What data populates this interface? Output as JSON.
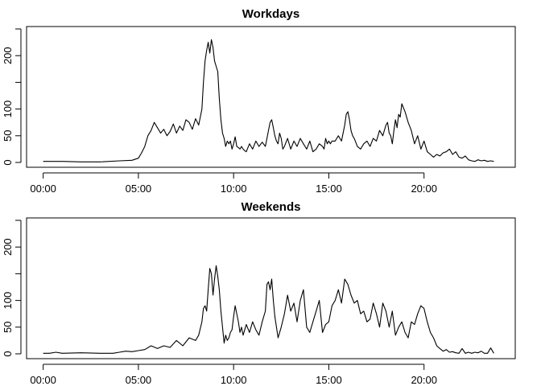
{
  "chart_data": [
    {
      "type": "line",
      "title": "Workdays",
      "xlabel": "",
      "ylabel": "",
      "xlim": [
        0,
        1435
      ],
      "ylim": [
        0,
        250
      ],
      "x_ticks": [
        0,
        300,
        600,
        900,
        1200
      ],
      "x_tick_labels": [
        "00:00",
        "05:00",
        "10:00",
        "15:00",
        "20:00"
      ],
      "y_ticks": [
        0,
        50,
        100,
        150,
        200,
        250
      ],
      "y_tick_labels": [
        "0",
        "50",
        "100",
        "",
        "200",
        ""
      ],
      "grid": false,
      "series": [
        {
          "x": [
            0,
            60,
            120,
            180,
            240,
            280,
            300,
            310,
            320,
            330,
            340,
            350,
            360,
            370,
            380,
            390,
            400,
            410,
            420,
            430,
            440,
            450,
            460,
            470,
            480,
            490,
            500,
            505,
            510,
            515,
            520,
            525,
            530,
            535,
            540,
            545,
            550,
            555,
            560,
            565,
            570,
            575,
            580,
            585,
            590,
            595,
            600,
            605,
            610,
            615,
            620,
            625,
            630,
            635,
            640,
            650,
            660,
            670,
            680,
            690,
            700,
            705,
            710,
            715,
            720,
            725,
            730,
            735,
            740,
            745,
            750,
            755,
            760,
            770,
            780,
            790,
            800,
            810,
            820,
            830,
            840,
            850,
            860,
            870,
            880,
            885,
            890,
            895,
            900,
            905,
            910,
            920,
            930,
            940,
            950,
            955,
            960,
            965,
            970,
            975,
            980,
            990,
            1000,
            1010,
            1020,
            1030,
            1040,
            1050,
            1060,
            1070,
            1080,
            1085,
            1090,
            1095,
            1100,
            1105,
            1110,
            1115,
            1120,
            1125,
            1130,
            1140,
            1150,
            1160,
            1170,
            1180,
            1190,
            1200,
            1210,
            1220,
            1230,
            1240,
            1250,
            1260,
            1270,
            1280,
            1290,
            1300,
            1310,
            1320,
            1330,
            1340,
            1350,
            1360,
            1370,
            1380,
            1390,
            1400,
            1410,
            1420
          ],
          "y": [
            2,
            2,
            1,
            1,
            3,
            4,
            8,
            18,
            30,
            50,
            60,
            75,
            65,
            55,
            62,
            50,
            58,
            72,
            55,
            68,
            60,
            80,
            75,
            62,
            82,
            70,
            100,
            150,
            190,
            210,
            225,
            205,
            230,
            215,
            190,
            180,
            170,
            120,
            80,
            55,
            45,
            30,
            40,
            35,
            40,
            25,
            35,
            48,
            30,
            28,
            25,
            30,
            25,
            22,
            20,
            35,
            25,
            40,
            30,
            38,
            30,
            45,
            60,
            75,
            80,
            65,
            50,
            40,
            35,
            55,
            45,
            25,
            30,
            45,
            25,
            40,
            30,
            45,
            35,
            25,
            40,
            20,
            25,
            35,
            30,
            25,
            45,
            35,
            40,
            35,
            40,
            40,
            50,
            40,
            70,
            90,
            95,
            80,
            60,
            50,
            45,
            30,
            25,
            35,
            40,
            30,
            45,
            40,
            60,
            50,
            70,
            75,
            55,
            50,
            35,
            60,
            80,
            65,
            90,
            85,
            110,
            95,
            75,
            60,
            35,
            50,
            25,
            40,
            20,
            15,
            10,
            15,
            12,
            18,
            20,
            25,
            15,
            20,
            10,
            8,
            12,
            5,
            3,
            2,
            5,
            3,
            4,
            2,
            3,
            2
          ]
        }
      ]
    },
    {
      "type": "line",
      "title": "Weekends",
      "xlabel": "",
      "ylabel": "",
      "xlim": [
        0,
        1435
      ],
      "ylim": [
        0,
        250
      ],
      "x_ticks": [
        0,
        300,
        600,
        900,
        1200
      ],
      "x_tick_labels": [
        "00:00",
        "05:00",
        "10:00",
        "15:00",
        "20:00"
      ],
      "y_ticks": [
        0,
        50,
        100,
        150,
        200,
        250
      ],
      "y_tick_labels": [
        "0",
        "50",
        "100",
        "",
        "200",
        ""
      ],
      "grid": false,
      "series": [
        {
          "x": [
            0,
            20,
            40,
            60,
            120,
            180,
            220,
            240,
            260,
            280,
            300,
            320,
            340,
            360,
            380,
            400,
            420,
            440,
            460,
            480,
            490,
            500,
            505,
            510,
            515,
            520,
            525,
            530,
            535,
            540,
            545,
            550,
            555,
            560,
            565,
            570,
            575,
            580,
            585,
            590,
            595,
            600,
            605,
            610,
            615,
            620,
            625,
            630,
            640,
            650,
            660,
            670,
            680,
            690,
            700,
            705,
            710,
            715,
            720,
            725,
            730,
            740,
            750,
            760,
            770,
            780,
            790,
            800,
            810,
            820,
            830,
            840,
            850,
            860,
            870,
            880,
            890,
            900,
            910,
            920,
            930,
            940,
            950,
            960,
            970,
            980,
            990,
            1000,
            1010,
            1020,
            1030,
            1040,
            1050,
            1060,
            1070,
            1080,
            1090,
            1100,
            1110,
            1120,
            1130,
            1140,
            1150,
            1160,
            1170,
            1180,
            1190,
            1200,
            1210,
            1220,
            1230,
            1240,
            1250,
            1260,
            1270,
            1280,
            1290,
            1300,
            1310,
            1320,
            1330,
            1340,
            1350,
            1360,
            1370,
            1380,
            1390,
            1400,
            1410,
            1420
          ],
          "y": [
            1,
            1,
            3,
            1,
            2,
            1,
            1,
            3,
            5,
            4,
            6,
            8,
            15,
            10,
            15,
            12,
            25,
            15,
            30,
            25,
            35,
            60,
            85,
            90,
            80,
            120,
            160,
            150,
            110,
            140,
            165,
            145,
            120,
            80,
            50,
            20,
            35,
            25,
            30,
            40,
            45,
            70,
            90,
            75,
            60,
            40,
            50,
            35,
            55,
            40,
            60,
            45,
            35,
            60,
            80,
            130,
            135,
            120,
            140,
            100,
            70,
            30,
            50,
            75,
            110,
            80,
            95,
            60,
            100,
            120,
            50,
            40,
            60,
            80,
            100,
            40,
            55,
            60,
            90,
            100,
            120,
            95,
            140,
            130,
            110,
            95,
            100,
            75,
            80,
            60,
            65,
            95,
            75,
            50,
            95,
            80,
            50,
            80,
            35,
            50,
            60,
            40,
            30,
            60,
            55,
            75,
            90,
            85,
            60,
            40,
            30,
            15,
            10,
            5,
            8,
            3,
            4,
            2,
            1,
            10,
            1,
            3,
            1,
            3,
            2,
            5,
            1,
            1,
            11,
            1
          ]
        }
      ]
    }
  ]
}
